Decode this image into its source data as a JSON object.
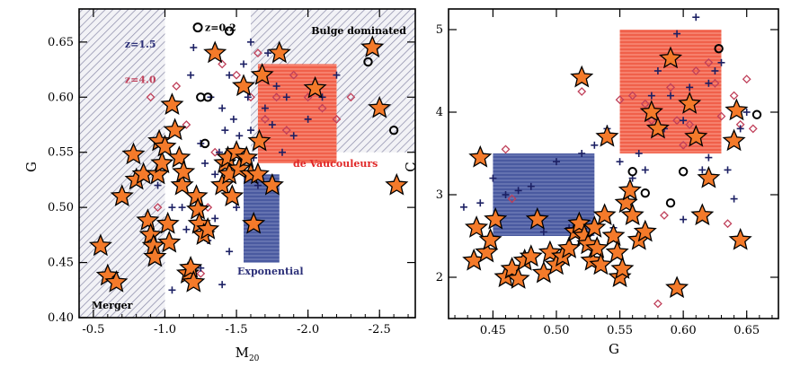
{
  "chart_data": [
    {
      "type": "scatter",
      "xlabel": "M",
      "xlabel_sub": "20",
      "ylabel": "G",
      "xlim": [
        -0.4,
        -2.75
      ],
      "ylim": [
        0.4,
        0.68
      ],
      "xticks": [
        "-0.5",
        "-1.0",
        "-1.5",
        "-2.0",
        "-2.5"
      ],
      "xtick_values": [
        -0.5,
        -1.0,
        -1.5,
        -2.0,
        -2.5
      ],
      "yticks": [
        "0.40",
        "0.45",
        "0.50",
        "0.55",
        "0.60",
        "0.65"
      ],
      "ytick_values": [
        0.4,
        0.45,
        0.5,
        0.55,
        0.6,
        0.65
      ],
      "regions": [
        {
          "name": "merger-region",
          "label": "Merger",
          "x0": -0.4,
          "x1": -1.0,
          "y0": 0.4,
          "y1": 0.68,
          "color": "#8a8aa8",
          "style": "hatch"
        },
        {
          "name": "bulge-region",
          "label": "Bulge dominated",
          "x0": -1.6,
          "x1": -2.75,
          "y0": 0.55,
          "y1": 0.68,
          "color": "#8a8aa8",
          "style": "hatch"
        },
        {
          "name": "devauc-box",
          "label": "de Vaucouleurs",
          "x0": -1.65,
          "x1": -2.2,
          "y0": 0.54,
          "y1": 0.63,
          "color": "#f0604a",
          "style": "fill"
        },
        {
          "name": "exp-box",
          "label": "Exponential",
          "x0": -1.55,
          "x1": -1.8,
          "y0": 0.45,
          "y1": 0.53,
          "color": "#4a5aa0",
          "style": "fill"
        }
      ],
      "annotations": [
        {
          "text": "z=0.2",
          "x": -1.28,
          "y": 0.66,
          "color": "#000000"
        },
        {
          "text": "z=1.5",
          "x": -0.72,
          "y": 0.645,
          "color": "#2b2f78"
        },
        {
          "text": "z=4.0",
          "x": -0.72,
          "y": 0.613,
          "color": "#c0405a"
        }
      ],
      "series": [
        {
          "name": "stars",
          "marker": "star",
          "points": [
            [
              -0.55,
              0.465
            ],
            [
              -0.6,
              0.438
            ],
            [
              -0.66,
              0.432
            ],
            [
              -0.7,
              0.51
            ],
            [
              -0.78,
              0.548
            ],
            [
              -0.8,
              0.525
            ],
            [
              -0.85,
              0.53
            ],
            [
              -0.88,
              0.488
            ],
            [
              -0.9,
              0.475
            ],
            [
              -0.92,
              0.465
            ],
            [
              -0.93,
              0.455
            ],
            [
              -0.95,
              0.53
            ],
            [
              -0.96,
              0.56
            ],
            [
              -0.98,
              0.54
            ],
            [
              -1.0,
              0.555
            ],
            [
              -1.02,
              0.485
            ],
            [
              -1.03,
              0.468
            ],
            [
              -1.05,
              0.593
            ],
            [
              -1.07,
              0.57
            ],
            [
              -1.1,
              0.545
            ],
            [
              -1.12,
              0.52
            ],
            [
              -1.13,
              0.532
            ],
            [
              -1.16,
              0.44
            ],
            [
              -1.18,
              0.445
            ],
            [
              -1.2,
              0.432
            ],
            [
              -1.22,
              0.51
            ],
            [
              -1.23,
              0.498
            ],
            [
              -1.24,
              0.485
            ],
            [
              -1.27,
              0.475
            ],
            [
              -1.3,
              0.48
            ],
            [
              -1.35,
              0.64
            ],
            [
              -1.4,
              0.52
            ],
            [
              -1.42,
              0.54
            ],
            [
              -1.44,
              0.545
            ],
            [
              -1.45,
              0.53
            ],
            [
              -1.47,
              0.51
            ],
            [
              -1.5,
              0.55
            ],
            [
              -1.52,
              0.535
            ],
            [
              -1.55,
              0.61
            ],
            [
              -1.57,
              0.545
            ],
            [
              -1.6,
              0.53
            ],
            [
              -1.62,
              0.485
            ],
            [
              -1.65,
              0.53
            ],
            [
              -1.66,
              0.56
            ],
            [
              -1.68,
              0.62
            ],
            [
              -1.75,
              0.52
            ],
            [
              -1.8,
              0.64
            ],
            [
              -2.05,
              0.608
            ],
            [
              -2.45,
              0.645
            ],
            [
              -2.5,
              0.59
            ],
            [
              -2.62,
              0.52
            ]
          ]
        },
        {
          "name": "crosses",
          "marker": "cross",
          "points": [
            [
              -1.05,
              0.425
            ],
            [
              -1.1,
              0.52
            ],
            [
              -1.12,
              0.5
            ],
            [
              -1.15,
              0.48
            ],
            [
              -1.18,
              0.62
            ],
            [
              -1.2,
              0.645
            ],
            [
              -1.25,
              0.558
            ],
            [
              -1.28,
              0.54
            ],
            [
              -1.3,
              0.47
            ],
            [
              -1.32,
              0.6
            ],
            [
              -1.35,
              0.53
            ],
            [
              -1.38,
              0.55
            ],
            [
              -1.4,
              0.59
            ],
            [
              -1.42,
              0.57
            ],
            [
              -1.45,
              0.62
            ],
            [
              -1.48,
              0.58
            ],
            [
              -1.5,
              0.5
            ],
            [
              -1.52,
              0.565
            ],
            [
              -1.55,
              0.63
            ],
            [
              -1.58,
              0.6
            ],
            [
              -1.6,
              0.57
            ],
            [
              -1.62,
              0.545
            ],
            [
              -1.65,
              0.52
            ],
            [
              -1.7,
              0.59
            ],
            [
              -1.72,
              0.64
            ],
            [
              -1.75,
              0.575
            ],
            [
              -1.78,
              0.61
            ],
            [
              -1.82,
              0.55
            ],
            [
              -1.85,
              0.6
            ],
            [
              -1.9,
              0.565
            ],
            [
              -2.0,
              0.58
            ],
            [
              -2.1,
              0.6
            ],
            [
              -2.2,
              0.62
            ],
            [
              -1.35,
              0.49
            ],
            [
              -1.45,
              0.46
            ],
            [
              -1.4,
              0.43
            ],
            [
              -1.25,
              0.445
            ],
            [
              -0.95,
              0.52
            ],
            [
              -1.05,
              0.5
            ],
            [
              -1.6,
              0.65
            ]
          ]
        },
        {
          "name": "diamonds",
          "marker": "diamond",
          "points": [
            [
              -0.9,
              0.6
            ],
            [
              -1.08,
              0.61
            ],
            [
              -1.15,
              0.575
            ],
            [
              -1.2,
              0.51
            ],
            [
              -1.25,
              0.44
            ],
            [
              -1.3,
              0.5
            ],
            [
              -1.4,
              0.63
            ],
            [
              -1.5,
              0.62
            ],
            [
              -1.6,
              0.6
            ],
            [
              -1.65,
              0.64
            ],
            [
              -1.7,
              0.58
            ],
            [
              -1.78,
              0.6
            ],
            [
              -1.85,
              0.57
            ],
            [
              -1.9,
              0.62
            ],
            [
              -2.0,
              0.6
            ],
            [
              -2.1,
              0.59
            ],
            [
              -2.2,
              0.58
            ],
            [
              -2.3,
              0.6
            ],
            [
              -1.35,
              0.55
            ],
            [
              -0.95,
              0.5
            ]
          ]
        },
        {
          "name": "circles",
          "marker": "circle",
          "points": [
            [
              -1.25,
              0.6
            ],
            [
              -1.3,
              0.6
            ],
            [
              -1.28,
              0.558
            ],
            [
              -1.45,
              0.66
            ],
            [
              -2.42,
              0.632
            ],
            [
              -2.6,
              0.57
            ]
          ]
        }
      ]
    },
    {
      "type": "scatter",
      "xlabel": "G",
      "ylabel": "C",
      "xlim": [
        0.415,
        0.675
      ],
      "ylim": [
        1.5,
        5.25
      ],
      "xticks": [
        "0.45",
        "0.50",
        "0.55",
        "0.60",
        "0.65"
      ],
      "xtick_values": [
        0.45,
        0.5,
        0.55,
        0.6,
        0.65
      ],
      "yticks": [
        "2",
        "3",
        "4",
        "5"
      ],
      "ytick_values": [
        2,
        3,
        4,
        5
      ],
      "regions": [
        {
          "name": "devauc-box-c",
          "x0": 0.55,
          "x1": 0.63,
          "y0": 3.5,
          "y1": 5.0,
          "color": "#f0604a",
          "style": "fill"
        },
        {
          "name": "exp-box-c",
          "x0": 0.45,
          "x1": 0.53,
          "y0": 2.5,
          "y1": 3.5,
          "color": "#4a5aa0",
          "style": "fill"
        }
      ],
      "series": [
        {
          "name": "stars",
          "marker": "star",
          "points": [
            [
              0.435,
              2.2
            ],
            [
              0.437,
              2.6
            ],
            [
              0.44,
              3.45
            ],
            [
              0.445,
              2.3
            ],
            [
              0.448,
              2.45
            ],
            [
              0.452,
              2.7
            ],
            [
              0.46,
              2.0
            ],
            [
              0.465,
              2.1
            ],
            [
              0.47,
              1.98
            ],
            [
              0.475,
              2.2
            ],
            [
              0.48,
              2.25
            ],
            [
              0.485,
              2.7
            ],
            [
              0.49,
              2.05
            ],
            [
              0.495,
              2.3
            ],
            [
              0.5,
              2.15
            ],
            [
              0.505,
              2.25
            ],
            [
              0.51,
              2.35
            ],
            [
              0.515,
              2.55
            ],
            [
              0.518,
              2.65
            ],
            [
              0.52,
              4.42
            ],
            [
              0.522,
              2.5
            ],
            [
              0.525,
              2.4
            ],
            [
              0.528,
              2.2
            ],
            [
              0.53,
              2.6
            ],
            [
              0.532,
              2.35
            ],
            [
              0.535,
              2.15
            ],
            [
              0.538,
              2.75
            ],
            [
              0.54,
              3.7
            ],
            [
              0.545,
              2.5
            ],
            [
              0.548,
              2.3
            ],
            [
              0.55,
              2.0
            ],
            [
              0.552,
              2.1
            ],
            [
              0.555,
              2.9
            ],
            [
              0.558,
              3.05
            ],
            [
              0.56,
              2.75
            ],
            [
              0.565,
              2.45
            ],
            [
              0.57,
              2.55
            ],
            [
              0.575,
              4.0
            ],
            [
              0.58,
              3.8
            ],
            [
              0.59,
              4.65
            ],
            [
              0.595,
              1.87
            ],
            [
              0.605,
              4.1
            ],
            [
              0.61,
              3.7
            ],
            [
              0.615,
              2.75
            ],
            [
              0.62,
              3.2
            ],
            [
              0.64,
              3.65
            ],
            [
              0.642,
              4.02
            ],
            [
              0.645,
              2.45
            ]
          ]
        },
        {
          "name": "crosses",
          "marker": "cross",
          "points": [
            [
              0.427,
              2.85
            ],
            [
              0.44,
              2.9
            ],
            [
              0.45,
              3.2
            ],
            [
              0.46,
              3.0
            ],
            [
              0.47,
              3.05
            ],
            [
              0.48,
              3.1
            ],
            [
              0.5,
              3.4
            ],
            [
              0.52,
              3.5
            ],
            [
              0.53,
              3.6
            ],
            [
              0.54,
              3.8
            ],
            [
              0.55,
              3.4
            ],
            [
              0.56,
              3.2
            ],
            [
              0.565,
              3.5
            ],
            [
              0.57,
              3.3
            ],
            [
              0.575,
              4.2
            ],
            [
              0.58,
              4.5
            ],
            [
              0.585,
              3.8
            ],
            [
              0.59,
              4.2
            ],
            [
              0.595,
              4.95
            ],
            [
              0.6,
              3.9
            ],
            [
              0.605,
              4.3
            ],
            [
              0.61,
              5.15
            ],
            [
              0.615,
              3.3
            ],
            [
              0.62,
              4.35
            ],
            [
              0.625,
              4.5
            ],
            [
              0.63,
              4.6
            ],
            [
              0.635,
              3.3
            ],
            [
              0.64,
              2.95
            ],
            [
              0.645,
              3.8
            ],
            [
              0.65,
              4.0
            ],
            [
              0.56,
              2.8
            ],
            [
              0.545,
              2.6
            ],
            [
              0.49,
              2.55
            ],
            [
              0.51,
              2.6
            ],
            [
              0.6,
              2.7
            ],
            [
              0.62,
              3.45
            ]
          ]
        },
        {
          "name": "diamonds",
          "marker": "diamond",
          "points": [
            [
              0.46,
              3.55
            ],
            [
              0.465,
              2.95
            ],
            [
              0.52,
              4.25
            ],
            [
              0.55,
              4.15
            ],
            [
              0.56,
              4.2
            ],
            [
              0.57,
              4.1
            ],
            [
              0.575,
              3.9
            ],
            [
              0.58,
              1.68
            ],
            [
              0.585,
              2.75
            ],
            [
              0.59,
              4.3
            ],
            [
              0.595,
              3.9
            ],
            [
              0.6,
              3.6
            ],
            [
              0.605,
              3.85
            ],
            [
              0.61,
              4.5
            ],
            [
              0.62,
              4.6
            ],
            [
              0.625,
              4.35
            ],
            [
              0.63,
              3.95
            ],
            [
              0.635,
              2.65
            ],
            [
              0.64,
              4.2
            ],
            [
              0.645,
              3.85
            ],
            [
              0.65,
              4.4
            ],
            [
              0.655,
              3.8
            ]
          ]
        },
        {
          "name": "circles",
          "marker": "circle",
          "points": [
            [
              0.56,
              3.28
            ],
            [
              0.57,
              3.02
            ],
            [
              0.59,
              2.9
            ],
            [
              0.6,
              3.28
            ],
            [
              0.628,
              4.77
            ],
            [
              0.658,
              3.97
            ]
          ]
        }
      ]
    }
  ]
}
